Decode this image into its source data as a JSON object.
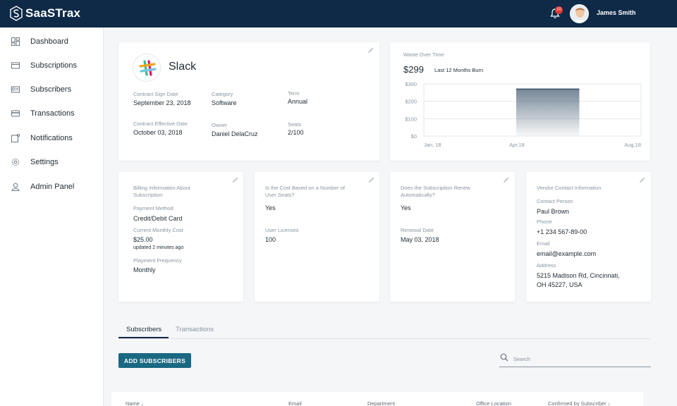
{
  "app": {
    "name": "SaaSTrax"
  },
  "header": {
    "notification_count": "10",
    "user_name": "James Smith"
  },
  "sidebar": {
    "items": [
      {
        "label": "Dashboard",
        "icon": "dashboard-icon"
      },
      {
        "label": "Subscriptions",
        "icon": "subscriptions-icon"
      },
      {
        "label": "Subscribers",
        "icon": "subscribers-icon"
      },
      {
        "label": "Transactions",
        "icon": "transactions-icon"
      },
      {
        "label": "Notifications",
        "icon": "notifications-icon"
      },
      {
        "label": "Settings",
        "icon": "settings-icon"
      },
      {
        "label": "Admin Panel",
        "icon": "admin-panel-icon"
      }
    ]
  },
  "app_card": {
    "name": "Slack",
    "contract_sign_date_label": "Contract Sign Date",
    "contract_sign_date": "September 23, 2018",
    "category_label": "Category",
    "category": "Software",
    "term_label": "Term",
    "term": "Annual",
    "contract_effective_date_label": "Contract Effective Date",
    "contract_effective_date": "October 03, 2018",
    "owner_label": "Owner",
    "owner": "Daniel DelaCruz",
    "seats_label": "Seats",
    "seats": "2/100"
  },
  "waste_card": {
    "title": "Waste Over Time",
    "amount": "$299",
    "subtitle": "Last 12 Months Burn"
  },
  "chart_data": {
    "type": "area",
    "title": "Waste Over Time",
    "y_ticks": [
      "$300",
      "$200",
      "$100",
      "$0"
    ],
    "x_ticks": [
      "Jan, 18",
      "Apr,18",
      "Aug,18"
    ],
    "ylim": [
      0,
      300
    ],
    "series": [
      {
        "values": [
          {
            "x_start": "Apr,18",
            "x_end": "Jun,18",
            "y": 270
          }
        ]
      }
    ],
    "grid": true,
    "color": "#5d7185"
  },
  "billing_card": {
    "title": "Billing Information About Subscription",
    "payment_method_label": "Payment Method",
    "payment_method": "Credit/Debit Card",
    "monthly_cost_label": "Current Monthly Cost",
    "monthly_cost": "$25.00",
    "updated": "updated 2 minutes ago",
    "frequency_label": "Playment Frequency",
    "frequency": "Monthly"
  },
  "seats_card": {
    "question": "Is the Cost Based on a Number of User Seats?",
    "answer": "Yes",
    "licenses_label": "User Licenses",
    "licenses": "100"
  },
  "renew_card": {
    "question": "Does the Subscription Renew Automatically?",
    "answer": "Yes",
    "renewal_date_label": "Renewal Date",
    "renewal_date": "May 03, 2018"
  },
  "vendor_card": {
    "title": "Vendor Contact Information",
    "contact_label": "Contact Person",
    "contact": "Paul Brown",
    "phone_label": "Phone",
    "phone": "+1 234 567-89-00",
    "email_label": "Email",
    "email": "email@example.com",
    "address_label": "Address",
    "address_line1": "5215 Madison Rd, Cincinnati,",
    "address_line2": "OH 45227, USA"
  },
  "tabs": [
    {
      "label": "Subscribers"
    },
    {
      "label": "Transactions"
    }
  ],
  "actions": {
    "add_label": "ADD SUBSCRIBERS"
  },
  "search": {
    "placeholder": "Search"
  },
  "table": {
    "columns": [
      "Name",
      "Email",
      "Department",
      "Office Location",
      "Confirmed by Subscriber"
    ]
  },
  "colors": {
    "header_bg": "#0e2a47",
    "primary_button": "#1a6882",
    "badge": "#e53935"
  }
}
